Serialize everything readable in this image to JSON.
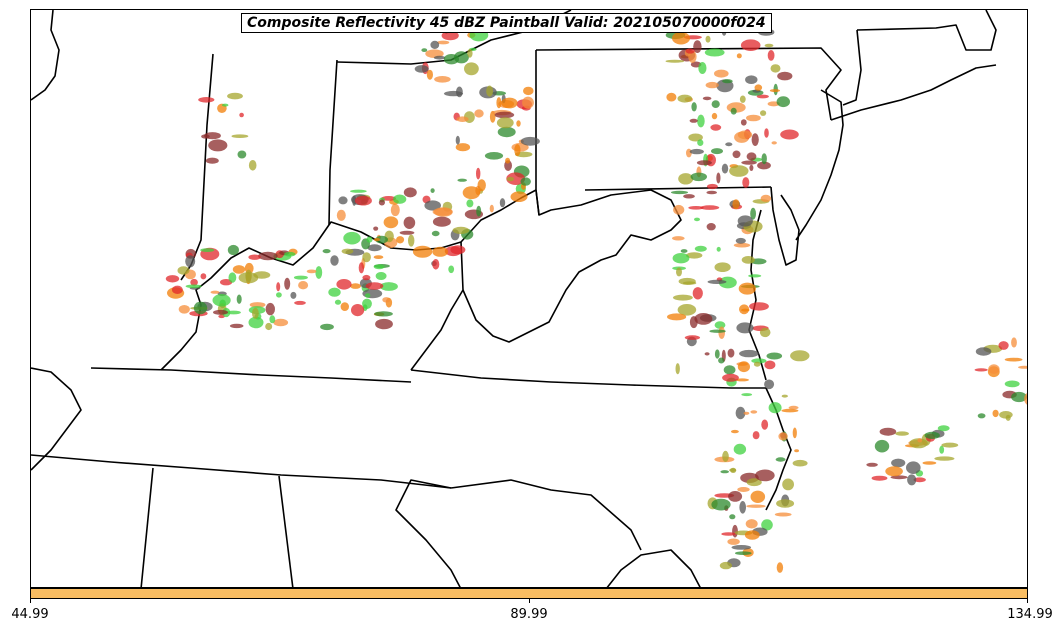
{
  "title": "Composite Reflectivity 45 dBZ Paintball Valid: 202105070000f024",
  "colorbar": {
    "color": "#f9bd62",
    "ticks": [
      "44.99",
      "89.99",
      "134.99"
    ]
  },
  "member_colors": [
    "#e0272b",
    "#f27d06",
    "#2c8a2c",
    "#3fd13f",
    "#a5a52c",
    "#8a2a2a",
    "#555555",
    "#f58e3a"
  ]
}
